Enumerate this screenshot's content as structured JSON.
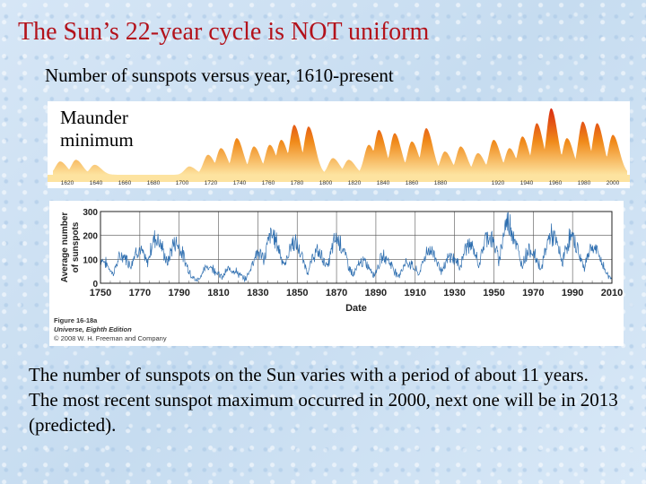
{
  "slide": {
    "title": "The Sun’s 22-year cycle is NOT uniform",
    "subtitle": "Number of sunspots versus year, 1610-present",
    "body": "The number of sunspots on the Sun varies with a period of about 11 years. The most recent sunspot maximum occurred in 2000, next one will be in 2013 (predicted)."
  },
  "figure": {
    "caption_title": "Figure 16-18a",
    "caption_book": "Universe, Eighth Edition",
    "caption_copyright": "© 2008 W. H. Freeman and Company"
  },
  "colors": {
    "title": "#b3121b",
    "flame_top": "#e03a14",
    "flame_mid": "#f29a1c",
    "flame_base": "#fde3a0",
    "trace": "#2f6fb0"
  },
  "chart_data": [
    {
      "type": "area",
      "annotation": "Maunder\nminimum",
      "x_ticks": [
        1620,
        1640,
        1660,
        1680,
        1700,
        1720,
        1740,
        1760,
        1780,
        1800,
        1820,
        1840,
        1860,
        1880,
        1920,
        1940,
        1960,
        1980,
        2000
      ],
      "x_range": [
        1610,
        2010
      ],
      "cycle_max_years": [
        1615,
        1626,
        1639,
        1705,
        1718,
        1727,
        1738,
        1750,
        1761,
        1769,
        1778,
        1788,
        1805,
        1816,
        1830,
        1837,
        1848,
        1860,
        1870,
        1883,
        1894,
        1906,
        1917,
        1928,
        1937,
        1947,
        1957,
        1968,
        1979,
        1989,
        2000
      ],
      "cycle_max_values": [
        40,
        45,
        30,
        25,
        60,
        80,
        110,
        85,
        90,
        105,
        150,
        145,
        50,
        45,
        90,
        135,
        125,
        100,
        140,
        70,
        85,
        65,
        105,
        80,
        115,
        155,
        200,
        110,
        160,
        155,
        120
      ]
    },
    {
      "type": "line",
      "xlabel": "Date",
      "ylabel": "Average number of sunspots",
      "x_ticks": [
        1750,
        1770,
        1790,
        1810,
        1830,
        1850,
        1870,
        1890,
        1910,
        1930,
        1950,
        1970,
        1990,
        2010
      ],
      "y_ticks": [
        0,
        100,
        200,
        300
      ],
      "xlim": [
        1750,
        2010
      ],
      "ylim": [
        0,
        300
      ],
      "cycle_max_years": [
        1750,
        1761,
        1769,
        1778,
        1788,
        1805,
        1816,
        1830,
        1837,
        1848,
        1860,
        1870,
        1883,
        1894,
        1906,
        1917,
        1928,
        1937,
        1947,
        1957,
        1968,
        1979,
        1989,
        2000
      ],
      "cycle_max_values": [
        100,
        115,
        140,
        190,
        170,
        70,
        60,
        125,
        200,
        170,
        130,
        185,
        90,
        110,
        85,
        140,
        110,
        160,
        200,
        255,
        140,
        200,
        190,
        150
      ]
    }
  ]
}
